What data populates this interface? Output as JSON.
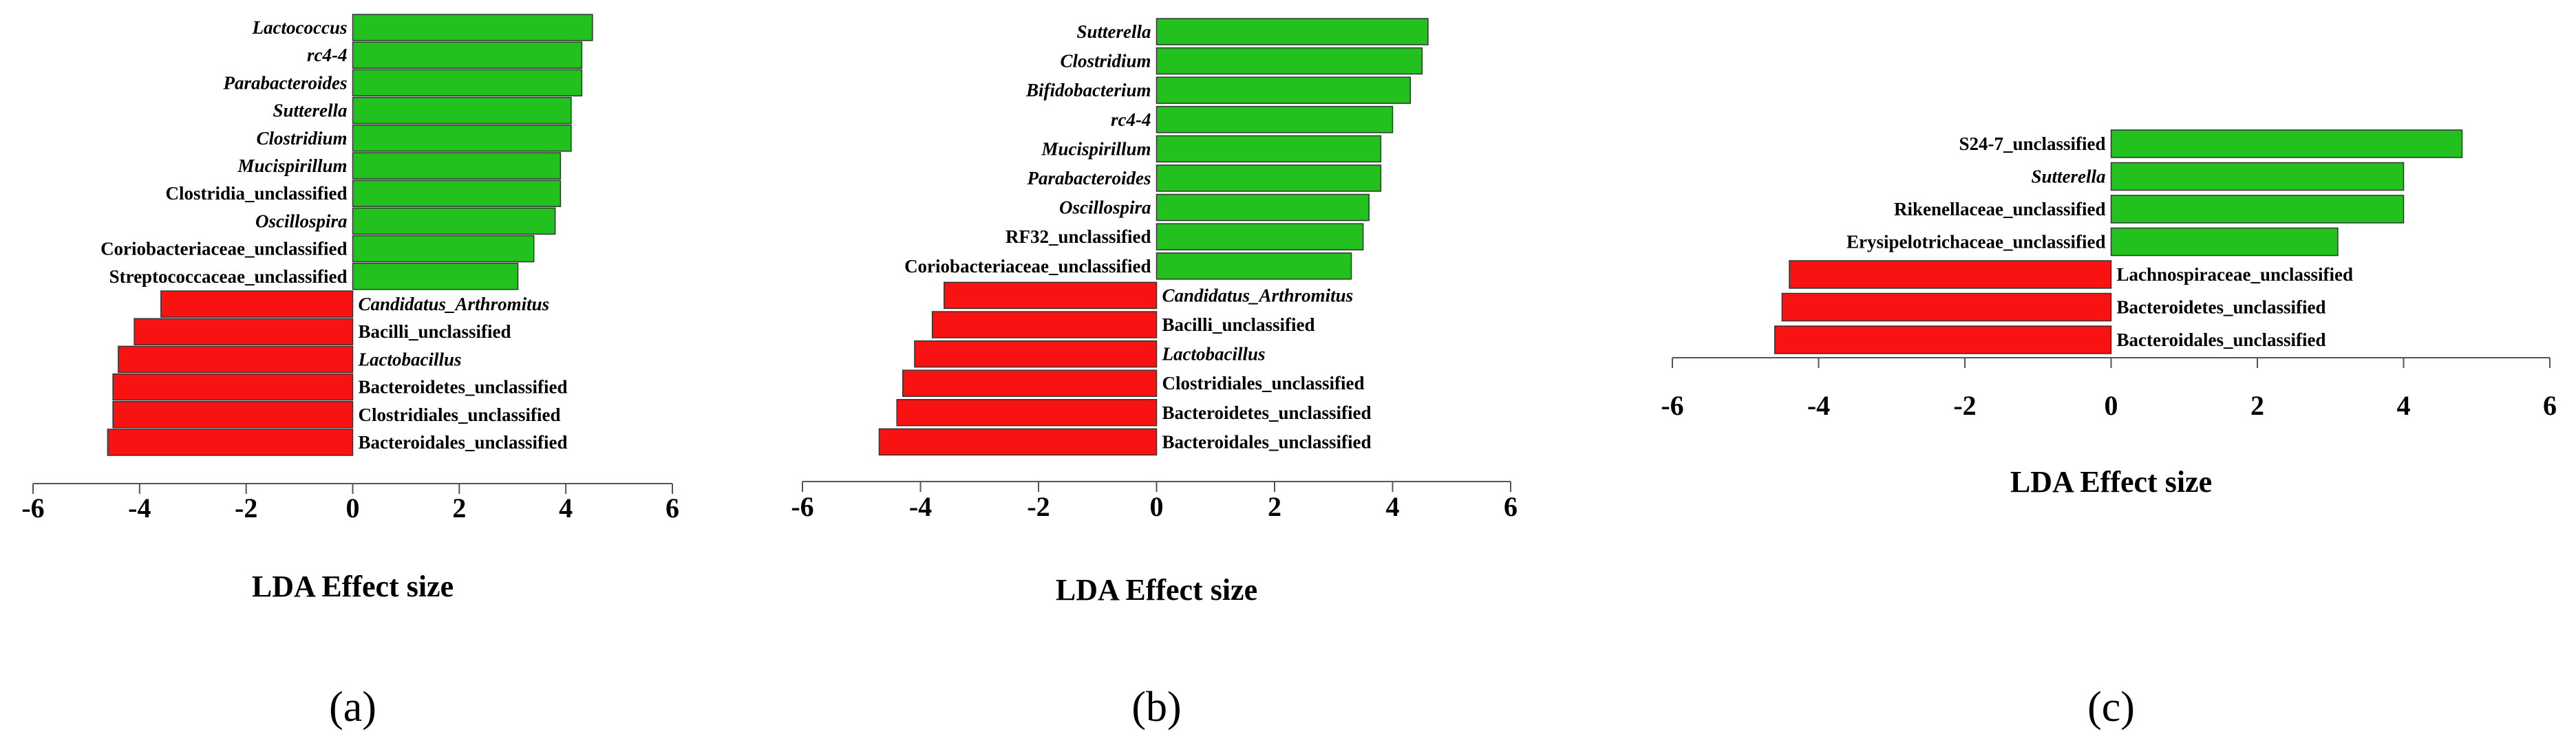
{
  "chart_data": [
    {
      "type": "bar",
      "orientation": "horizontal",
      "panel_label": "(a)",
      "xlabel": "LDA Effect size",
      "xlim": [
        -6,
        6
      ],
      "xticks": [
        "-6",
        "-4",
        "-2",
        "0",
        "2",
        "4",
        "6"
      ],
      "colors": {
        "positive": "#22c11e",
        "negative": "#f91212"
      },
      "bars": [
        {
          "label": "Lactococcus",
          "value": 4.5,
          "italic": true
        },
        {
          "label": "rc4-4",
          "value": 4.3,
          "italic": true
        },
        {
          "label": "Parabacteroides",
          "value": 4.3,
          "italic": true
        },
        {
          "label": "Sutterella",
          "value": 4.1,
          "italic": true
        },
        {
          "label": "Clostridium",
          "value": 4.1,
          "italic": true
        },
        {
          "label": "Mucispirillum",
          "value": 3.9,
          "italic": true
        },
        {
          "label": "Clostridia_unclassified",
          "value": 3.9,
          "italic": false
        },
        {
          "label": "Oscillospira",
          "value": 3.8,
          "italic": true
        },
        {
          "label": "Coriobacteriaceae_unclassified",
          "value": 3.4,
          "italic": false
        },
        {
          "label": "Streptococcaceae_unclassified",
          "value": 3.1,
          "italic": false
        },
        {
          "label": "Candidatus_Arthromitus",
          "value": -3.6,
          "italic": true
        },
        {
          "label": "Bacilli_unclassified",
          "value": -4.1,
          "italic": false
        },
        {
          "label": "Lactobacillus",
          "value": -4.4,
          "italic": true
        },
        {
          "label": "Bacteroidetes_unclassified",
          "value": -4.5,
          "italic": false
        },
        {
          "label": "Clostridiales_unclassified",
          "value": -4.5,
          "italic": false
        },
        {
          "label": "Bacteroidales_unclassified",
          "value": -4.6,
          "italic": false
        }
      ]
    },
    {
      "type": "bar",
      "orientation": "horizontal",
      "panel_label": "(b)",
      "xlabel": "LDA Effect size",
      "xlim": [
        -6,
        6
      ],
      "xticks": [
        "-6",
        "-4",
        "-2",
        "0",
        "2",
        "4",
        "6"
      ],
      "colors": {
        "positive": "#22c11e",
        "negative": "#f91212"
      },
      "bars": [
        {
          "label": "Sutterella",
          "value": 4.6,
          "italic": true
        },
        {
          "label": "Clostridium",
          "value": 4.5,
          "italic": true
        },
        {
          "label": "Bifidobacterium",
          "value": 4.3,
          "italic": true
        },
        {
          "label": "rc4-4",
          "value": 4.0,
          "italic": true
        },
        {
          "label": "Mucispirillum",
          "value": 3.8,
          "italic": true
        },
        {
          "label": "Parabacteroides",
          "value": 3.8,
          "italic": true
        },
        {
          "label": "Oscillospira",
          "value": 3.6,
          "italic": true
        },
        {
          "label": "RF32_unclassified",
          "value": 3.5,
          "italic": false
        },
        {
          "label": "Coriobacteriaceae_unclassified",
          "value": 3.3,
          "italic": false
        },
        {
          "label": "Candidatus_Arthromitus",
          "value": -3.6,
          "italic": true
        },
        {
          "label": "Bacilli_unclassified",
          "value": -3.8,
          "italic": false
        },
        {
          "label": "Lactobacillus",
          "value": -4.1,
          "italic": true
        },
        {
          "label": "Clostridiales_unclassified",
          "value": -4.3,
          "italic": false
        },
        {
          "label": "Bacteroidetes_unclassified",
          "value": -4.4,
          "italic": false
        },
        {
          "label": "Bacteroidales_unclassified",
          "value": -4.7,
          "italic": false
        }
      ]
    },
    {
      "type": "bar",
      "orientation": "horizontal",
      "panel_label": "(c)",
      "xlabel": "LDA Effect size",
      "xlim": [
        -6,
        6
      ],
      "xticks": [
        "-6",
        "-4",
        "-2",
        "0",
        "2",
        "4",
        "6"
      ],
      "colors": {
        "positive": "#22c11e",
        "negative": "#f91212"
      },
      "bars": [
        {
          "label": "S24-7_unclassified",
          "value": 4.8,
          "italic": false
        },
        {
          "label": "Sutterella",
          "value": 4.0,
          "italic": true
        },
        {
          "label": "Rikenellaceae_unclassified",
          "value": 4.0,
          "italic": false
        },
        {
          "label": "Erysipelotrichaceae_unclassified",
          "value": 3.1,
          "italic": false
        },
        {
          "label": "Lachnospiraceae_unclassified",
          "value": -4.4,
          "italic": false
        },
        {
          "label": "Bacteroidetes_unclassified",
          "value": -4.5,
          "italic": false
        },
        {
          "label": "Bacteroidales_unclassified",
          "value": -4.6,
          "italic": false
        }
      ]
    }
  ]
}
